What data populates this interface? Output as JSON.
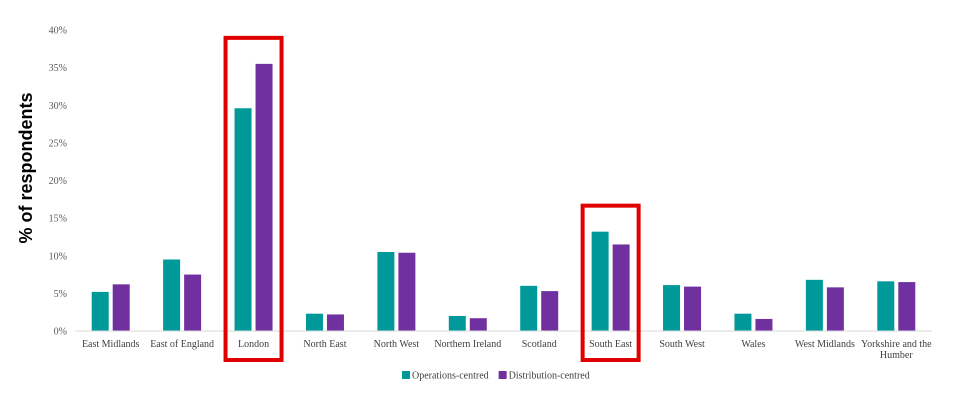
{
  "chart_data": {
    "type": "bar",
    "ylabel": "% of respondents",
    "xlabel": "",
    "ylim": [
      0,
      40
    ],
    "yticks": [
      "0%",
      "5%",
      "10%",
      "15%",
      "20%",
      "25%",
      "30%",
      "35%",
      "40%"
    ],
    "grid": false,
    "legend_position": "bottom",
    "categories": [
      "East Midlands",
      "East of England",
      "London",
      "North East",
      "North West",
      "Northern Ireland",
      "Scotland",
      "South East",
      "South West",
      "Wales",
      "West Midlands",
      "Yorkshire and the Humber"
    ],
    "series": [
      {
        "name": "Operations-centred",
        "color": "#009999",
        "values": [
          5.2,
          9.5,
          29.6,
          2.3,
          10.5,
          2.0,
          6.0,
          13.2,
          6.1,
          2.3,
          6.8,
          6.6
        ]
      },
      {
        "name": "Distribution-centred",
        "color": "#7030A0",
        "values": [
          6.2,
          7.5,
          35.5,
          2.2,
          10.4,
          1.7,
          5.3,
          11.5,
          5.9,
          1.6,
          5.8,
          6.5
        ]
      }
    ],
    "highlighted_categories": [
      "London",
      "South East"
    ],
    "highlight_color": "#E00000"
  }
}
